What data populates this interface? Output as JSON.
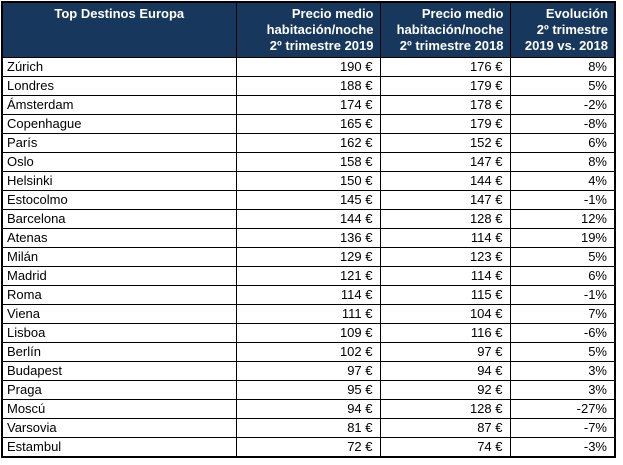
{
  "colors": {
    "page_bg": "#FFFFFF",
    "header_bg": "#17375D",
    "header_text": "#FFFFFF",
    "row_bg": "#FFFFFF",
    "row_text": "#000000",
    "border": "#000000"
  },
  "headers_display": [
    "Top Destinos Europa",
    "Precio medio\nhabitación/noche\n2º trimestre 2019",
    "Precio medio\nhabitación/noche\n2º trimestre 2018",
    "Evolución\n2º trimestre\n2019 vs. 2018"
  ],
  "chart_data": {
    "type": "table",
    "title": "Top Destinos Europa",
    "columns": [
      "Top Destinos Europa",
      "Precio medio habitación/noche 2º trimestre 2019",
      "Precio medio habitación/noche 2º trimestre 2018",
      "Evolución 2º trimestre 2019 vs. 2018"
    ],
    "units": {
      "price": "€",
      "evolution": "%"
    },
    "rows": [
      {
        "city": "Zúrich",
        "price_2019": 190,
        "price_2018": 176,
        "evolution": 8
      },
      {
        "city": "Londres",
        "price_2019": 188,
        "price_2018": 179,
        "evolution": 5
      },
      {
        "city": "Ámsterdam",
        "price_2019": 174,
        "price_2018": 178,
        "evolution": -2
      },
      {
        "city": "Copenhague",
        "price_2019": 165,
        "price_2018": 179,
        "evolution": -8
      },
      {
        "city": "París",
        "price_2019": 162,
        "price_2018": 152,
        "evolution": 6
      },
      {
        "city": "Oslo",
        "price_2019": 158,
        "price_2018": 147,
        "evolution": 8
      },
      {
        "city": "Helsinki",
        "price_2019": 150,
        "price_2018": 144,
        "evolution": 4
      },
      {
        "city": "Estocolmo",
        "price_2019": 145,
        "price_2018": 147,
        "evolution": -1
      },
      {
        "city": "Barcelona",
        "price_2019": 144,
        "price_2018": 128,
        "evolution": 12
      },
      {
        "city": "Atenas",
        "price_2019": 136,
        "price_2018": 114,
        "evolution": 19
      },
      {
        "city": "Milán",
        "price_2019": 129,
        "price_2018": 123,
        "evolution": 5
      },
      {
        "city": "Madrid",
        "price_2019": 121,
        "price_2018": 114,
        "evolution": 6
      },
      {
        "city": "Roma",
        "price_2019": 114,
        "price_2018": 115,
        "evolution": -1
      },
      {
        "city": "Viena",
        "price_2019": 111,
        "price_2018": 104,
        "evolution": 7
      },
      {
        "city": "Lisboa",
        "price_2019": 109,
        "price_2018": 116,
        "evolution": -6
      },
      {
        "city": "Berlín",
        "price_2019": 102,
        "price_2018": 97,
        "evolution": 5
      },
      {
        "city": "Budapest",
        "price_2019": 97,
        "price_2018": 94,
        "evolution": 3
      },
      {
        "city": "Praga",
        "price_2019": 95,
        "price_2018": 92,
        "evolution": 3
      },
      {
        "city": "Moscú",
        "price_2019": 94,
        "price_2018": 128,
        "evolution": -27
      },
      {
        "city": "Varsovia",
        "price_2019": 81,
        "price_2018": 87,
        "evolution": -7
      },
      {
        "city": "Estambul",
        "price_2019": 72,
        "price_2018": 74,
        "evolution": -3
      }
    ]
  }
}
